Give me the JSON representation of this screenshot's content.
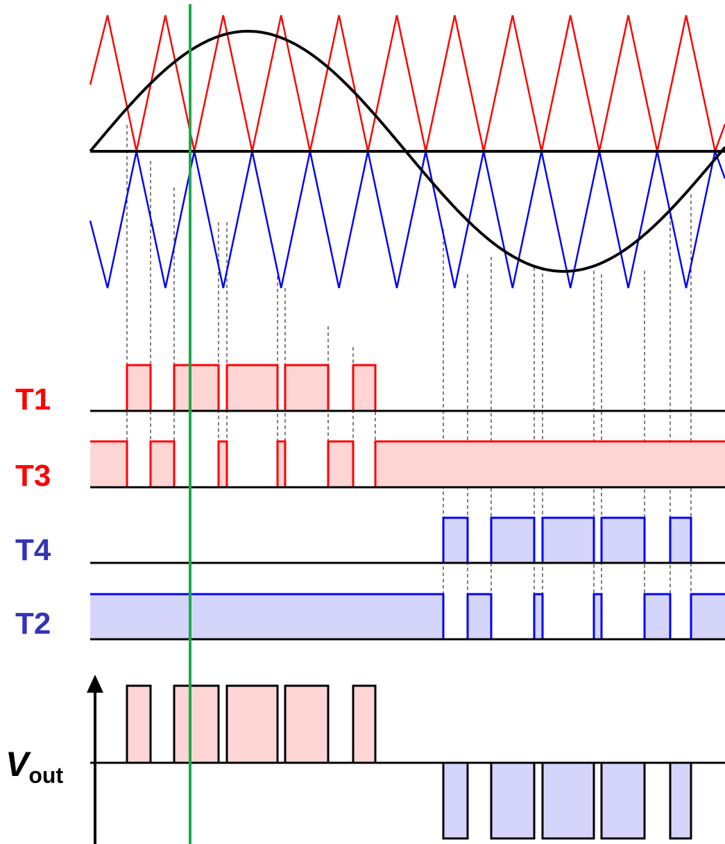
{
  "labels": {
    "t1": "T1",
    "t3": "T3",
    "t4": "T4",
    "t2": "T2",
    "vout_main": "V",
    "vout_sub": "out"
  },
  "colors": {
    "positive": "#ff0000",
    "negative": "#0000ff",
    "positive_fill": "#fdd5d5",
    "negative_fill": "#d5d5fb",
    "label_negative": "#3333bb",
    "reference": "#000000",
    "marker": "#1aaa4a",
    "guide": "#000000"
  },
  "pwm": {
    "positive_carrier_peaks": 11,
    "negative_carrier_peaks": 11
  },
  "icons": {
    "axis_arrow": "arrow-up-icon"
  }
}
